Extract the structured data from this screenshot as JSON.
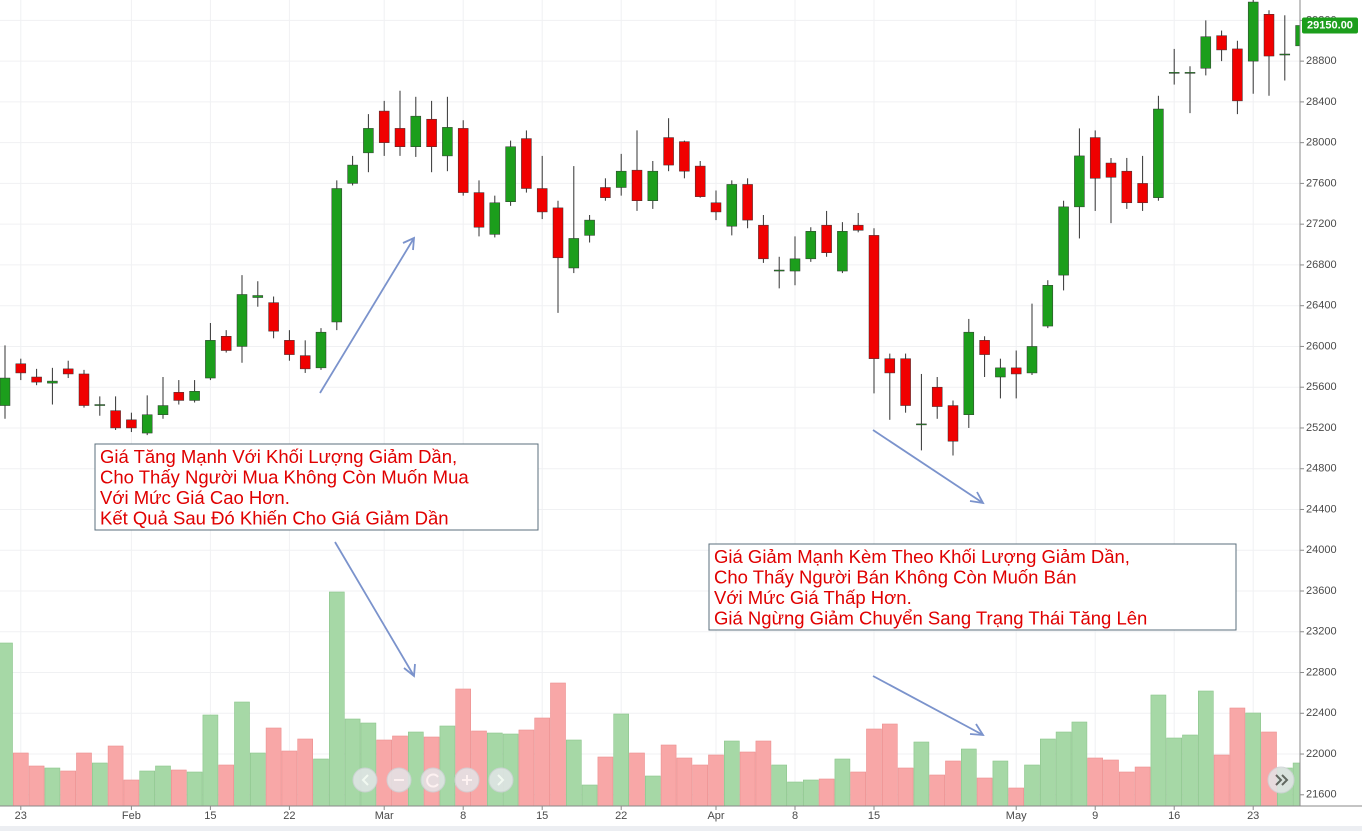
{
  "chart_data": {
    "type": "candlestick",
    "categories": [
      null,
      "23",
      null,
      null,
      null,
      null,
      null,
      null,
      "Feb",
      null,
      null,
      null,
      null,
      "15",
      null,
      null,
      null,
      null,
      "22",
      null,
      null,
      null,
      null,
      null,
      "Mar",
      null,
      null,
      null,
      null,
      "8",
      null,
      null,
      null,
      null,
      "15",
      null,
      null,
      null,
      null,
      "22",
      null,
      null,
      null,
      null,
      null,
      "Apr",
      null,
      null,
      null,
      null,
      "8",
      null,
      null,
      null,
      null,
      "15",
      null,
      null,
      null,
      null,
      null,
      null,
      null,
      null,
      "May",
      null,
      null,
      null,
      null,
      "9",
      null,
      null,
      null,
      null,
      "16",
      null,
      null,
      null,
      null,
      "23",
      null,
      null,
      null
    ],
    "open": [
      25420,
      25830,
      25700,
      25640,
      25780,
      25730,
      25420,
      25370,
      25280,
      25150,
      25330,
      25550,
      25470,
      25690,
      26100,
      26000,
      26480,
      26430,
      26060,
      25910,
      25790,
      26240,
      27600,
      27900,
      28310,
      28140,
      27960,
      28230,
      27870,
      28140,
      27510,
      27100,
      27420,
      28040,
      27550,
      27360,
      26770,
      27090,
      27560,
      27560,
      27730,
      27430,
      28050,
      28010,
      27770,
      27410,
      27180,
      27590,
      27190,
      26740,
      26740,
      26860,
      27190,
      26740,
      27190,
      27090,
      25880,
      25880,
      25230,
      25600,
      25420,
      25330,
      26060,
      25700,
      25790,
      25740,
      26200,
      26700,
      27370,
      28050,
      27800,
      27720,
      27600,
      27460,
      28680,
      28680,
      28730,
      29050,
      28920,
      28800,
      29260,
      28860,
      28950
    ],
    "high": [
      26010,
      25880,
      25780,
      25790,
      25860,
      25770,
      25510,
      25510,
      25350,
      25520,
      25700,
      25670,
      25670,
      26230,
      26160,
      26700,
      26640,
      26490,
      26160,
      26060,
      26180,
      27630,
      27870,
      28280,
      28410,
      28510,
      28450,
      28410,
      28450,
      28220,
      27630,
      27480,
      28020,
      28120,
      27870,
      27430,
      27770,
      27290,
      27650,
      27890,
      28120,
      27820,
      28240,
      28020,
      27820,
      27530,
      27630,
      27650,
      27290,
      26880,
      27080,
      27170,
      27330,
      27220,
      27310,
      27160,
      25930,
      25930,
      25730,
      25700,
      25470,
      26270,
      26100,
      25880,
      25960,
      26420,
      26650,
      27430,
      28140,
      28120,
      27850,
      27850,
      27870,
      28460,
      28920,
      28750,
      29200,
      29100,
      29000,
      29450,
      29300,
      29250,
      29200
    ],
    "low": [
      25290,
      25670,
      25620,
      25430,
      25690,
      25400,
      25320,
      25180,
      25160,
      25130,
      25290,
      25430,
      25450,
      25670,
      25940,
      25840,
      26390,
      26080,
      25860,
      25740,
      25770,
      26160,
      27580,
      27710,
      27870,
      27870,
      27860,
      27710,
      27720,
      27480,
      27080,
      27070,
      27380,
      27510,
      27250,
      26330,
      26720,
      27020,
      27430,
      27480,
      27330,
      27350,
      27720,
      27650,
      27460,
      27240,
      27090,
      27160,
      26820,
      26570,
      26600,
      26830,
      26880,
      26720,
      27120,
      25540,
      25280,
      25350,
      24980,
      25290,
      24930,
      25200,
      25700,
      25490,
      25490,
      25720,
      26180,
      26550,
      27060,
      27330,
      27210,
      27350,
      27330,
      27430,
      28570,
      28290,
      28660,
      28800,
      28280,
      28480,
      28460,
      28610,
      28900
    ],
    "close": [
      25690,
      25740,
      25650,
      25660,
      25730,
      25420,
      25430,
      25200,
      25200,
      25330,
      25420,
      25470,
      25560,
      26060,
      25960,
      26510,
      26500,
      26150,
      25920,
      25780,
      26140,
      27550,
      27780,
      28140,
      28000,
      27960,
      28260,
      27960,
      28150,
      27510,
      27170,
      27410,
      27960,
      27550,
      27320,
      26870,
      27060,
      27240,
      27460,
      27720,
      27430,
      27720,
      27780,
      27720,
      27470,
      27320,
      27590,
      27240,
      26860,
      26750,
      26860,
      27130,
      26920,
      27130,
      27140,
      25880,
      25740,
      25420,
      25240,
      25410,
      25070,
      26140,
      25920,
      25790,
      25730,
      26000,
      26600,
      27370,
      27870,
      27650,
      27660,
      27410,
      27410,
      28330,
      28690,
      28690,
      29040,
      28910,
      28410,
      29380,
      28850,
      28870,
      29150
    ],
    "volume": [
      163,
      53,
      40,
      38,
      35,
      53,
      43,
      60,
      26,
      35,
      40,
      36,
      34,
      91,
      41,
      104,
      53,
      78,
      55,
      67,
      47,
      214,
      87,
      83,
      66,
      70,
      74,
      69,
      80,
      117,
      75,
      73,
      72,
      76,
      88,
      123,
      66,
      21,
      49,
      92,
      53,
      30,
      61,
      48,
      41,
      51,
      65,
      54,
      65,
      41,
      24,
      26,
      27,
      47,
      34,
      77,
      82,
      38,
      64,
      31,
      45,
      57,
      28,
      45,
      18,
      41,
      67,
      74,
      84,
      48,
      46,
      34,
      39,
      111,
      68,
      71,
      115,
      51,
      98,
      93,
      74,
      38,
      43
    ],
    "up_color": "#1c9e1c",
    "down_color": "#f00000",
    "volume_up_color": "#a6d8a6",
    "volume_down_color": "#f8a7a7",
    "ylim": [
      21490,
      29400
    ],
    "yticks": [
      21600,
      22000,
      22400,
      22800,
      23200,
      23600,
      24000,
      24400,
      24800,
      25200,
      25600,
      26000,
      26400,
      26800,
      27200,
      27600,
      28000,
      28400,
      28800,
      29200
    ],
    "grid": true,
    "last_price_label": "29150.00",
    "annotations": [
      {
        "lines": [
          "Giá Tăng Mạnh Với Khối Lượng Giảm Dần,",
          "Cho Thấy Người Mua Không Còn Muốn Mua",
          "Với Mức Giá Cao Hơn.",
          "Kết Quả Sau Đó Khiến Cho Giá Giảm Dần"
        ]
      },
      {
        "lines": [
          "Giá Giảm Mạnh Kèm Theo Khối Lượng Giảm Dần,",
          "Cho Thấy Người Bán Không Còn Muốn Bán",
          "Với Mức Giá Thấp Hơn.",
          "Giá Ngừng Giảm Chuyển Sang Trạng Thái Tăng Lên"
        ]
      }
    ]
  }
}
